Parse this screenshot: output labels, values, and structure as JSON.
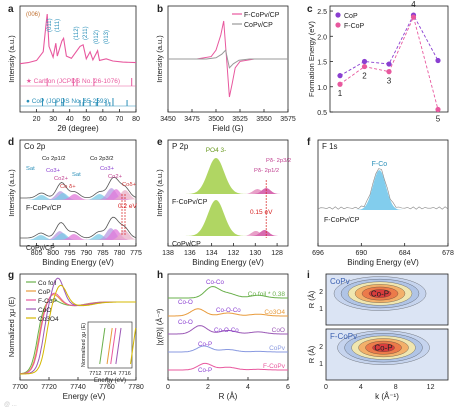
{
  "panel_labels": [
    "a",
    "b",
    "c",
    "d",
    "e",
    "f",
    "g",
    "h",
    "i"
  ],
  "watermark": "@ ...",
  "chart_data": [
    {
      "panel": "a",
      "type": "line",
      "xlabel": "2θ (degree)",
      "ylabel": "Intensity (a.u.)",
      "xlim": [
        10,
        80
      ],
      "x_ticks": [
        20,
        30,
        40,
        50,
        60,
        70,
        80
      ],
      "peak_labels": [
        "(006)",
        "(011)",
        "(111)",
        "(112)",
        "(211)",
        "(012)",
        "(013)"
      ],
      "legend": [
        "Carbon (JCPDS No. 26-1076)",
        "CoP (JCPDS No. 65-2593)"
      ],
      "carbon_refs": [
        26.4,
        42.2,
        44.4,
        54.6,
        77.4
      ],
      "cop_refs": [
        23.6,
        31.6,
        35.3,
        36.3,
        46.2,
        48.1,
        48.4,
        52.3,
        56.0,
        56.8,
        61.9,
        64.2,
        66.1,
        74.6
      ],
      "pattern": {
        "x": [
          10,
          15,
          20,
          24,
          25.5,
          26.4,
          27.5,
          30,
          31.6,
          32.5,
          35.3,
          36.3,
          38,
          41,
          46.2,
          48.1,
          50,
          52.3,
          54,
          56.8,
          58,
          62,
          66,
          72,
          80
        ],
        "y": [
          0.08,
          0.1,
          0.14,
          0.3,
          0.75,
          1.0,
          0.4,
          0.2,
          0.46,
          0.22,
          0.5,
          0.55,
          0.22,
          0.18,
          0.4,
          0.43,
          0.17,
          0.3,
          0.15,
          0.32,
          0.14,
          0.17,
          0.13,
          0.11,
          0.1
        ]
      }
    },
    {
      "panel": "b",
      "type": "line",
      "xlabel": "Field (G)",
      "ylabel": "Intensity (a.u.)",
      "xlim": [
        3450,
        3575
      ],
      "x_ticks": [
        3450,
        3475,
        3500,
        3525,
        3550,
        3575
      ],
      "series": [
        {
          "name": "F-CoPv/CP",
          "color": "#e8589e",
          "x": [
            3450,
            3480,
            3495,
            3500,
            3505,
            3508,
            3511,
            3514,
            3517,
            3520,
            3525,
            3540,
            3575
          ],
          "y": [
            0.0,
            0.0,
            0.06,
            0.22,
            0.6,
            0.95,
            0.0,
            -0.95,
            -0.6,
            -0.22,
            -0.06,
            0.0,
            0.0
          ]
        },
        {
          "name": "CoPv/CP",
          "color": "#9a9a9a",
          "x": [
            3450,
            3490,
            3500,
            3506,
            3510,
            3512,
            3514,
            3518,
            3524,
            3535,
            3575
          ],
          "y": [
            0.0,
            0.0,
            0.03,
            0.12,
            0.22,
            0.0,
            -0.22,
            -0.12,
            -0.03,
            0.0,
            0.0
          ]
        }
      ]
    },
    {
      "panel": "c",
      "type": "line",
      "ylabel": "Formation Energy (eV)",
      "ylim": [
        0.5,
        2.6
      ],
      "y_ticks": [
        0.5,
        1.0,
        1.5,
        2.0,
        2.5
      ],
      "categories": [
        "1",
        "2",
        "3",
        "4",
        "5"
      ],
      "series": [
        {
          "name": "CoP",
          "color": "#8a3fd1",
          "values": [
            1.22,
            1.5,
            1.45,
            2.42,
            1.52
          ]
        },
        {
          "name": "F-CoP",
          "color": "#e8589e",
          "values": [
            1.05,
            1.4,
            1.3,
            2.38,
            0.55
          ]
        }
      ]
    },
    {
      "panel": "d",
      "type": "line",
      "title": "Co 2p",
      "xlabel": "Binding Energy (eV)",
      "ylabel": "Intensity (a.u.)",
      "xlim": [
        810,
        775
      ],
      "x_ticks": [
        805,
        800,
        795,
        790,
        785,
        780,
        775
      ],
      "labels": [
        "Sat",
        "Co 2p1/2",
        "Co3+",
        "Co2+",
        "Co δ+",
        "Sat",
        "Co 2p3/2",
        "Co3+",
        "Co2+",
        "Coδ+"
      ],
      "shift_label": "0.2 eV",
      "series_names": [
        "F-CoPv/CP",
        "CoPv/CP"
      ],
      "peak_positions": [
        803.5,
        797.8,
        797.0,
        793.5,
        786.0,
        782.4,
        781.0,
        778.3
      ]
    },
    {
      "panel": "e",
      "type": "line",
      "title": "P 2p",
      "xlabel": "Binding Energy (eV)",
      "ylabel": "Intensity (a.u.)",
      "xlim": [
        138,
        127
      ],
      "x_ticks": [
        138,
        136,
        134,
        132,
        130,
        128
      ],
      "labels": [
        "PO4 3-",
        "Pδ- 2p1/2",
        "Pδ- 2p3/2"
      ],
      "shift_label": "0.15 eV",
      "series_names": [
        "F-CoPv/CP",
        "CoPv/CP"
      ],
      "peak_positions": [
        133.6,
        129.8,
        129.0
      ]
    },
    {
      "panel": "f",
      "type": "line",
      "title": "F 1s",
      "xlabel": "Binding Energy (eV)",
      "xlim": [
        696,
        678
      ],
      "x_ticks": [
        696,
        690,
        684,
        678
      ],
      "labels": [
        "F-Co"
      ],
      "series_names": [
        "F-CoPv/CP"
      ],
      "peak_positions": [
        687.5
      ]
    },
    {
      "panel": "g",
      "type": "line",
      "xlabel": "Energy (eV)",
      "ylabel": "Normalized χμ (E)",
      "xlim": [
        7700,
        7780
      ],
      "x_ticks": [
        7700,
        7720,
        7740,
        7760,
        7780
      ],
      "series": [
        {
          "name": "Co foil",
          "color": "#6ab04c"
        },
        {
          "name": "CoP",
          "color": "#e89b3c"
        },
        {
          "name": "F-CoP",
          "color": "#e8589e"
        },
        {
          "name": "CoO",
          "color": "#9b59b6"
        },
        {
          "name": "Co3O4",
          "color": "#d4b800"
        }
      ],
      "inset": {
        "xlabel": "Energy (eV)",
        "ylabel": "Normalized χμ (E)",
        "x_ticks": [
          7712,
          7714,
          7716
        ]
      }
    },
    {
      "panel": "h",
      "type": "line",
      "xlabel": "R (Å)",
      "ylabel": "|χ(R)| (Å⁻³)",
      "xlim": [
        0,
        6
      ],
      "x_ticks": [
        0,
        2,
        4,
        6
      ],
      "series_names": [
        "Co foil * 0.38",
        "Co3O4",
        "CoO",
        "CoPv",
        "F-CoPv"
      ],
      "labels": [
        "Co-Co",
        "Co-O",
        "Co-O-Co",
        "Co-O",
        "Co-O-Co",
        "Co-P",
        "Co-P"
      ]
    },
    {
      "panel": "i",
      "type": "heatmap",
      "xlabel": "k (Å⁻¹)",
      "ylabel": "R (Å)",
      "xlim": [
        0,
        14
      ],
      "x_ticks": [
        0,
        4,
        8,
        12
      ],
      "ylim": [
        0,
        3
      ],
      "y_ticks": [
        1,
        2
      ],
      "maps": [
        {
          "name": "CoPv",
          "feature": "Co-P",
          "center_k": 6.2,
          "center_R": 1.85
        },
        {
          "name": "F-CoPv",
          "feature": "Co-P",
          "center_k": 6.6,
          "center_R": 1.9
        }
      ]
    }
  ]
}
